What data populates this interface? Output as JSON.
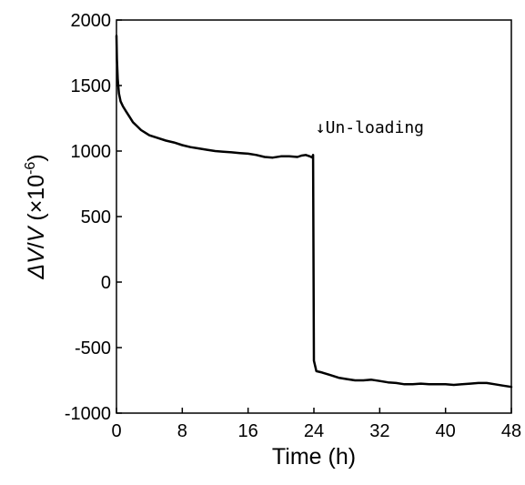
{
  "chart_data": {
    "type": "line",
    "title": "",
    "xlabel": "Time (h)",
    "ylabel": {
      "delta": "Δ",
      "v1": "V",
      "slash": "/",
      "v2": "V",
      "open": " (×10",
      "exp": "-6",
      "close": ")"
    },
    "xlim": [
      0,
      48
    ],
    "ylim": [
      -1000,
      2000
    ],
    "xticks": [
      "0",
      "8",
      "16",
      "24",
      "32",
      "40",
      "48"
    ],
    "yticks": [
      "2000",
      "1500",
      "1000",
      "500",
      "0",
      "-500",
      "-1000"
    ],
    "grid": false,
    "series": [
      {
        "color": "#000000",
        "x": [
          0,
          0.05,
          0.15,
          0.3,
          0.5,
          0.8,
          1.2,
          1.6,
          2,
          2.5,
          3,
          3.5,
          4,
          5,
          6,
          7,
          8,
          9,
          10,
          11,
          12,
          13,
          14,
          15,
          16,
          17,
          18,
          19,
          20,
          21,
          22,
          22.5,
          23,
          23.5,
          23.8,
          23.85,
          23.9,
          24,
          24.3,
          25,
          26,
          27,
          28,
          29,
          30,
          31,
          32,
          33,
          34,
          35,
          36,
          37,
          38,
          39,
          40,
          41,
          42,
          43,
          44,
          45,
          46,
          47,
          48
        ],
        "y": [
          1880,
          1700,
          1550,
          1440,
          1380,
          1340,
          1300,
          1260,
          1220,
          1190,
          1160,
          1140,
          1120,
          1100,
          1080,
          1065,
          1045,
          1030,
          1020,
          1010,
          1000,
          995,
          990,
          985,
          980,
          970,
          955,
          950,
          960,
          960,
          955,
          965,
          970,
          960,
          950,
          960,
          970,
          -600,
          -680,
          -690,
          -710,
          -730,
          -740,
          -750,
          -750,
          -745,
          -755,
          -765,
          -770,
          -780,
          -780,
          -775,
          -780,
          -780,
          -780,
          -785,
          -780,
          -775,
          -770,
          -770,
          -780,
          -790,
          -800
        ]
      }
    ],
    "annotations": [
      {
        "text": "↓Un-loading",
        "x": 24.2,
        "y": 1000
      }
    ]
  }
}
